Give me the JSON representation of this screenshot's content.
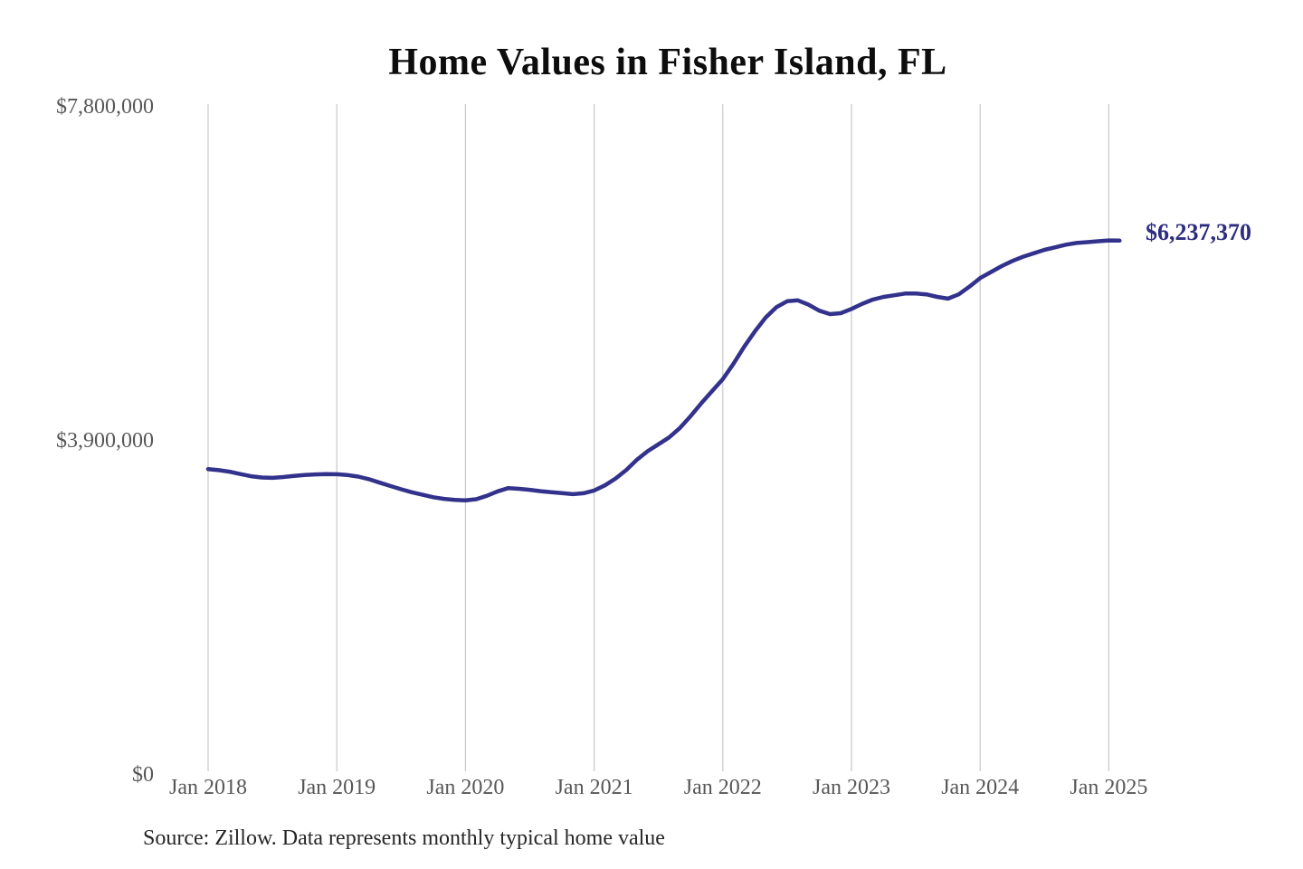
{
  "title": "Home Values in Fisher Island, FL",
  "source_note": "Source: Zillow. Data represents monthly typical home value",
  "annotation": {
    "label": "$6,237,370"
  },
  "colors": {
    "line": "#32328c",
    "annotation": "#2d2d80",
    "grid": "#c8c8c8",
    "axis_label": "#575757",
    "title": "#0d0d0d",
    "source": "#262626",
    "background": "#ffffff"
  },
  "y_axis": {
    "ticks": [
      {
        "label": "$7,800,000",
        "value": 7800000
      },
      {
        "label": "$3,900,000",
        "value": 3900000
      },
      {
        "label": "$0",
        "value": 0
      }
    ]
  },
  "x_axis": {
    "ticks": [
      {
        "label": "Jan 2018",
        "month_index": 0
      },
      {
        "label": "Jan 2019",
        "month_index": 12
      },
      {
        "label": "Jan 2020",
        "month_index": 24
      },
      {
        "label": "Jan 2021",
        "month_index": 36
      },
      {
        "label": "Jan 2022",
        "month_index": 48
      },
      {
        "label": "Jan 2023",
        "month_index": 60
      },
      {
        "label": "Jan 2024",
        "month_index": 72
      },
      {
        "label": "Jan 2025",
        "month_index": 84
      }
    ]
  },
  "chart_data": {
    "type": "line",
    "title": "Home Values in Fisher Island, FL",
    "xlabel": "",
    "ylabel": "",
    "ylim": [
      0,
      7800000
    ],
    "grid": "vertical-only",
    "legend": "none",
    "line_color": "#32328c",
    "end_label": "$6,237,370",
    "final_value": 6237370,
    "x": [
      "Jan 2018",
      "Feb 2018",
      "Mar 2018",
      "Apr 2018",
      "May 2018",
      "Jun 2018",
      "Jul 2018",
      "Aug 2018",
      "Sep 2018",
      "Oct 2018",
      "Nov 2018",
      "Dec 2018",
      "Jan 2019",
      "Feb 2019",
      "Mar 2019",
      "Apr 2019",
      "May 2019",
      "Jun 2019",
      "Jul 2019",
      "Aug 2019",
      "Sep 2019",
      "Oct 2019",
      "Nov 2019",
      "Dec 2019",
      "Jan 2020",
      "Feb 2020",
      "Mar 2020",
      "Apr 2020",
      "May 2020",
      "Jun 2020",
      "Jul 2020",
      "Aug 2020",
      "Sep 2020",
      "Oct 2020",
      "Nov 2020",
      "Dec 2020",
      "Jan 2021",
      "Feb 2021",
      "Mar 2021",
      "Apr 2021",
      "May 2021",
      "Jun 2021",
      "Jul 2021",
      "Aug 2021",
      "Sep 2021",
      "Oct 2021",
      "Nov 2021",
      "Dec 2021",
      "Jan 2022",
      "Feb 2022",
      "Mar 2022",
      "Apr 2022",
      "May 2022",
      "Jun 2022",
      "Jul 2022",
      "Aug 2022",
      "Sep 2022",
      "Oct 2022",
      "Nov 2022",
      "Dec 2022",
      "Jan 2023",
      "Feb 2023",
      "Mar 2023",
      "Apr 2023",
      "May 2023",
      "Jun 2023",
      "Jul 2023",
      "Aug 2023",
      "Sep 2023",
      "Oct 2023",
      "Nov 2023",
      "Dec 2023",
      "Jan 2024",
      "Feb 2024",
      "Mar 2024",
      "Apr 2024",
      "May 2024",
      "Jun 2024",
      "Jul 2024",
      "Aug 2024",
      "Sep 2024",
      "Oct 2024",
      "Nov 2024",
      "Dec 2024",
      "Jan 2025",
      "Feb 2025"
    ],
    "values": [
      3570000,
      3558000,
      3540000,
      3512000,
      3487000,
      3472000,
      3468000,
      3477000,
      3490000,
      3500000,
      3508000,
      3512000,
      3510000,
      3500000,
      3482000,
      3452000,
      3412000,
      3373000,
      3335000,
      3300000,
      3270000,
      3242000,
      3222000,
      3210000,
      3206000,
      3218000,
      3258000,
      3310000,
      3348000,
      3340000,
      3328000,
      3312000,
      3300000,
      3290000,
      3278000,
      3288000,
      3320000,
      3380000,
      3460000,
      3560000,
      3680000,
      3780000,
      3860000,
      3940000,
      4050000,
      4190000,
      4340000,
      4480000,
      4620000,
      4800000,
      5000000,
      5180000,
      5340000,
      5460000,
      5530000,
      5540000,
      5490000,
      5420000,
      5380000,
      5390000,
      5440000,
      5500000,
      5550000,
      5580000,
      5600000,
      5620000,
      5620000,
      5610000,
      5580000,
      5560000,
      5610000,
      5700000,
      5800000,
      5870000,
      5940000,
      6000000,
      6050000,
      6090000,
      6130000,
      6160000,
      6190000,
      6210000,
      6220000,
      6230000,
      6240000,
      6237370
    ]
  }
}
